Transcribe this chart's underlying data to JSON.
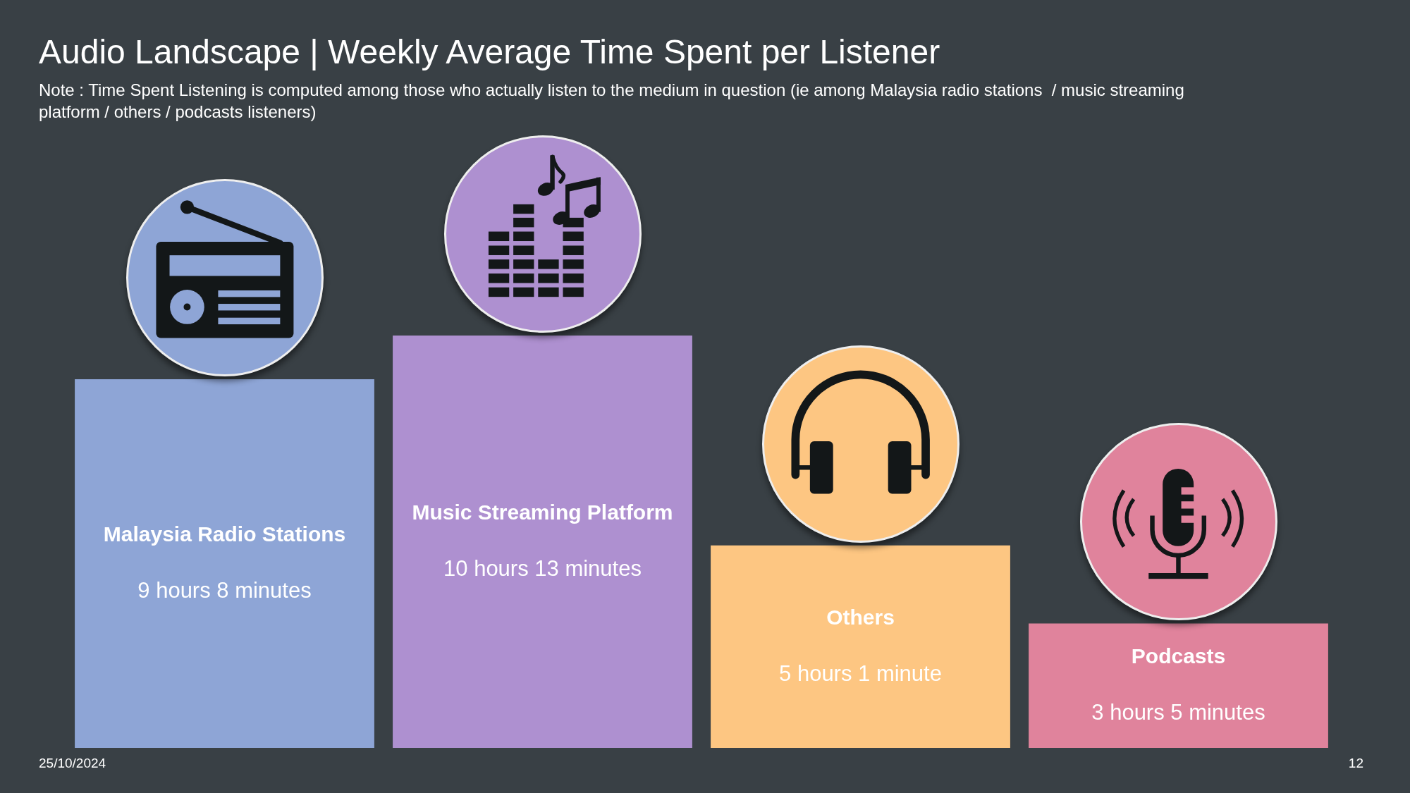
{
  "chart_data": {
    "type": "bar",
    "title": "Audio Landscape | Weekly Average Time Spent per Listener",
    "subtitle": "Note : Time Spent Listening is computed among those who actually listen to the medium in question (ie among Malaysia radio stations  / music streaming platform / others / podcasts listeners)",
    "categories": [
      "Malaysia Radio Stations",
      "Music Streaming Platform",
      "Others",
      "Podcasts"
    ],
    "values": [
      9.133,
      10.217,
      5.017,
      3.083
    ],
    "value_labels": [
      "9 hours 8 minutes",
      "10 hours 13 minutes",
      "5 hours 1 minute",
      "3 hours 5 minutes"
    ],
    "colors": [
      "#8ea5d6",
      "#ae90d0",
      "#fdc682",
      "#e0839c"
    ],
    "tick_labels": "x",
    "annotations": [
      "25/10/2024",
      "12"
    ]
  }
}
